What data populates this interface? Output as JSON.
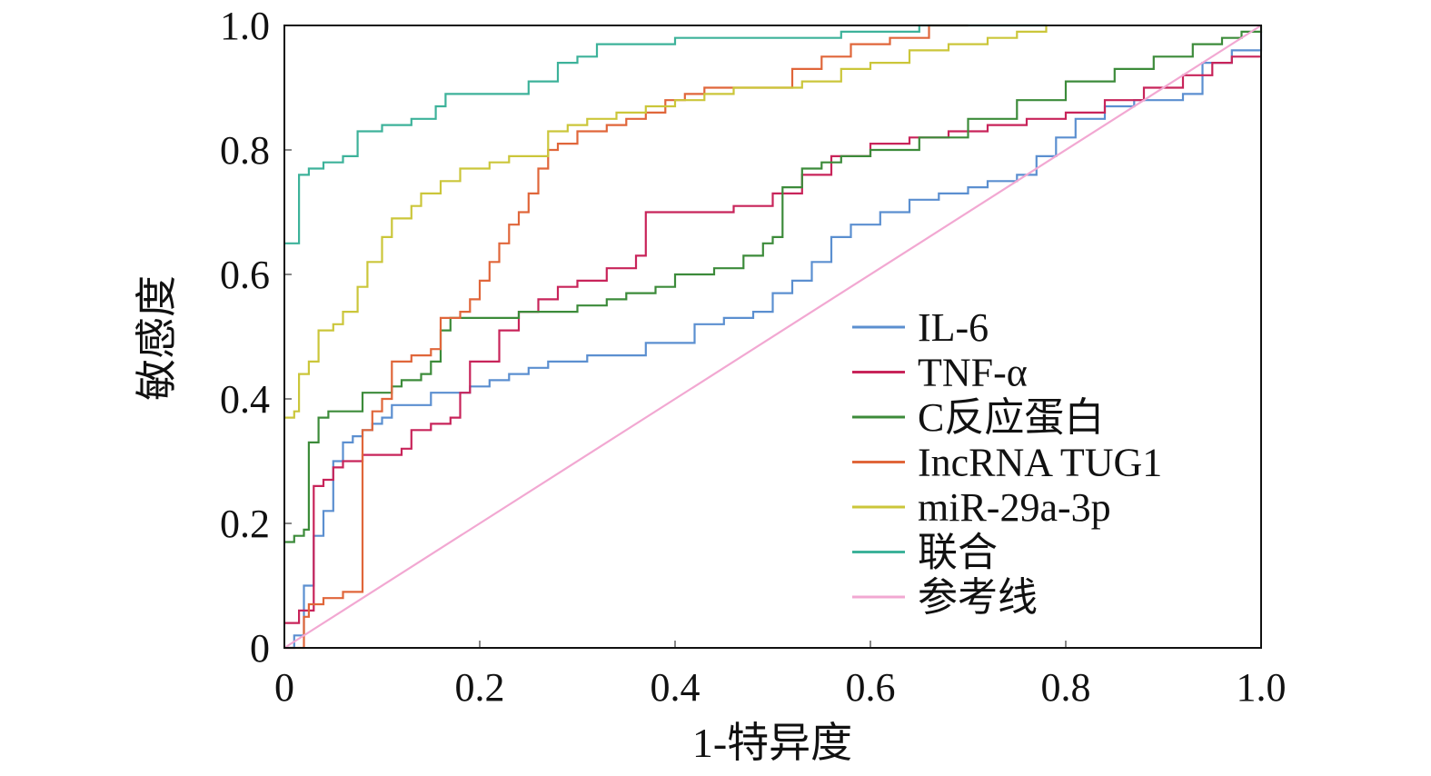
{
  "chart_data": {
    "type": "line",
    "title": "",
    "xlabel": "1-特异度",
    "ylabel": "敏感度",
    "xlim": [
      0,
      1
    ],
    "ylim": [
      0,
      1
    ],
    "xticks": [
      0,
      0.2,
      0.4,
      0.6,
      0.8,
      1.0
    ],
    "xtick_labels": [
      "0",
      "0.2",
      "0.4",
      "0.6",
      "0.8",
      "1.0"
    ],
    "yticks": [
      0,
      0.2,
      0.4,
      0.6,
      0.8,
      1.0
    ],
    "ytick_labels": [
      "0",
      "0.2",
      "0.4",
      "0.6",
      "0.8",
      "1.0"
    ],
    "legend_position": "bottom-right",
    "series": [
      {
        "name": "IL-6",
        "color": "#5B8FD0",
        "points": [
          [
            0,
            0
          ],
          [
            0.01,
            0.02
          ],
          [
            0.02,
            0.1
          ],
          [
            0.03,
            0.18
          ],
          [
            0.04,
            0.22
          ],
          [
            0.05,
            0.3
          ],
          [
            0.06,
            0.33
          ],
          [
            0.07,
            0.34
          ],
          [
            0.08,
            0.35
          ],
          [
            0.09,
            0.36
          ],
          [
            0.1,
            0.37
          ],
          [
            0.11,
            0.39
          ],
          [
            0.13,
            0.39
          ],
          [
            0.15,
            0.41
          ],
          [
            0.17,
            0.41
          ],
          [
            0.19,
            0.42
          ],
          [
            0.21,
            0.43
          ],
          [
            0.23,
            0.44
          ],
          [
            0.25,
            0.45
          ],
          [
            0.27,
            0.46
          ],
          [
            0.29,
            0.46
          ],
          [
            0.31,
            0.47
          ],
          [
            0.35,
            0.47
          ],
          [
            0.37,
            0.49
          ],
          [
            0.41,
            0.49
          ],
          [
            0.42,
            0.52
          ],
          [
            0.45,
            0.53
          ],
          [
            0.48,
            0.54
          ],
          [
            0.5,
            0.57
          ],
          [
            0.52,
            0.59
          ],
          [
            0.54,
            0.62
          ],
          [
            0.56,
            0.66
          ],
          [
            0.58,
            0.68
          ],
          [
            0.61,
            0.7
          ],
          [
            0.64,
            0.72
          ],
          [
            0.67,
            0.73
          ],
          [
            0.7,
            0.74
          ],
          [
            0.72,
            0.75
          ],
          [
            0.75,
            0.76
          ],
          [
            0.77,
            0.79
          ],
          [
            0.79,
            0.82
          ],
          [
            0.81,
            0.85
          ],
          [
            0.84,
            0.87
          ],
          [
            0.87,
            0.88
          ],
          [
            0.9,
            0.88
          ],
          [
            0.92,
            0.89
          ],
          [
            0.94,
            0.94
          ],
          [
            0.97,
            0.96
          ],
          [
            1.0,
            0.99
          ]
        ]
      },
      {
        "name": "TNF-α",
        "color": "#C8245A",
        "points": [
          [
            0,
            0.04
          ],
          [
            0.01,
            0.04
          ],
          [
            0.015,
            0.06
          ],
          [
            0.025,
            0.06
          ],
          [
            0.03,
            0.26
          ],
          [
            0.04,
            0.27
          ],
          [
            0.05,
            0.29
          ],
          [
            0.06,
            0.3
          ],
          [
            0.07,
            0.3
          ],
          [
            0.08,
            0.31
          ],
          [
            0.1,
            0.31
          ],
          [
            0.12,
            0.32
          ],
          [
            0.13,
            0.35
          ],
          [
            0.15,
            0.36
          ],
          [
            0.17,
            0.37
          ],
          [
            0.18,
            0.41
          ],
          [
            0.19,
            0.46
          ],
          [
            0.21,
            0.46
          ],
          [
            0.22,
            0.51
          ],
          [
            0.24,
            0.54
          ],
          [
            0.26,
            0.56
          ],
          [
            0.28,
            0.58
          ],
          [
            0.3,
            0.59
          ],
          [
            0.33,
            0.61
          ],
          [
            0.36,
            0.63
          ],
          [
            0.37,
            0.7
          ],
          [
            0.42,
            0.7
          ],
          [
            0.46,
            0.71
          ],
          [
            0.5,
            0.73
          ],
          [
            0.53,
            0.76
          ],
          [
            0.56,
            0.79
          ],
          [
            0.6,
            0.81
          ],
          [
            0.64,
            0.82
          ],
          [
            0.68,
            0.83
          ],
          [
            0.72,
            0.84
          ],
          [
            0.76,
            0.85
          ],
          [
            0.8,
            0.86
          ],
          [
            0.84,
            0.88
          ],
          [
            0.88,
            0.9
          ],
          [
            0.92,
            0.92
          ],
          [
            0.95,
            0.94
          ],
          [
            0.97,
            0.95
          ],
          [
            1.0,
            0.95
          ]
        ]
      },
      {
        "name": "C反应蛋白",
        "color": "#3C8B3A",
        "points": [
          [
            0,
            0.17
          ],
          [
            0.01,
            0.18
          ],
          [
            0.02,
            0.19
          ],
          [
            0.025,
            0.33
          ],
          [
            0.035,
            0.37
          ],
          [
            0.045,
            0.38
          ],
          [
            0.055,
            0.38
          ],
          [
            0.075,
            0.38
          ],
          [
            0.08,
            0.41
          ],
          [
            0.11,
            0.42
          ],
          [
            0.12,
            0.43
          ],
          [
            0.14,
            0.44
          ],
          [
            0.15,
            0.46
          ],
          [
            0.16,
            0.51
          ],
          [
            0.17,
            0.53
          ],
          [
            0.22,
            0.53
          ],
          [
            0.24,
            0.54
          ],
          [
            0.28,
            0.54
          ],
          [
            0.3,
            0.55
          ],
          [
            0.33,
            0.56
          ],
          [
            0.35,
            0.57
          ],
          [
            0.38,
            0.58
          ],
          [
            0.4,
            0.6
          ],
          [
            0.44,
            0.61
          ],
          [
            0.47,
            0.63
          ],
          [
            0.49,
            0.65
          ],
          [
            0.5,
            0.66
          ],
          [
            0.51,
            0.74
          ],
          [
            0.53,
            0.77
          ],
          [
            0.55,
            0.78
          ],
          [
            0.57,
            0.79
          ],
          [
            0.6,
            0.8
          ],
          [
            0.65,
            0.82
          ],
          [
            0.7,
            0.85
          ],
          [
            0.75,
            0.88
          ],
          [
            0.8,
            0.91
          ],
          [
            0.85,
            0.93
          ],
          [
            0.89,
            0.95
          ],
          [
            0.93,
            0.97
          ],
          [
            0.96,
            0.98
          ],
          [
            0.98,
            0.99
          ],
          [
            1.0,
            1.0
          ]
        ]
      },
      {
        "name": "IncRNA TUG1",
        "color": "#E0663A",
        "points": [
          [
            0,
            0
          ],
          [
            0.015,
            0
          ],
          [
            0.02,
            0.05
          ],
          [
            0.025,
            0.07
          ],
          [
            0.04,
            0.08
          ],
          [
            0.06,
            0.09
          ],
          [
            0.075,
            0.09
          ],
          [
            0.08,
            0.35
          ],
          [
            0.09,
            0.38
          ],
          [
            0.1,
            0.4
          ],
          [
            0.11,
            0.46
          ],
          [
            0.13,
            0.47
          ],
          [
            0.15,
            0.48
          ],
          [
            0.16,
            0.53
          ],
          [
            0.18,
            0.54
          ],
          [
            0.19,
            0.56
          ],
          [
            0.2,
            0.59
          ],
          [
            0.21,
            0.62
          ],
          [
            0.22,
            0.65
          ],
          [
            0.23,
            0.68
          ],
          [
            0.24,
            0.7
          ],
          [
            0.25,
            0.73
          ],
          [
            0.26,
            0.77
          ],
          [
            0.27,
            0.8
          ],
          [
            0.28,
            0.81
          ],
          [
            0.3,
            0.83
          ],
          [
            0.33,
            0.84
          ],
          [
            0.35,
            0.85
          ],
          [
            0.37,
            0.86
          ],
          [
            0.39,
            0.88
          ],
          [
            0.41,
            0.89
          ],
          [
            0.43,
            0.9
          ],
          [
            0.46,
            0.9
          ],
          [
            0.5,
            0.9
          ],
          [
            0.52,
            0.93
          ],
          [
            0.55,
            0.95
          ],
          [
            0.58,
            0.97
          ],
          [
            0.62,
            0.98
          ],
          [
            0.66,
            1.0
          ],
          [
            0.7,
            1.0
          ]
        ]
      },
      {
        "name": "miR-29a-3p",
        "color": "#CBC63A",
        "points": [
          [
            0,
            0.37
          ],
          [
            0.01,
            0.38
          ],
          [
            0.015,
            0.44
          ],
          [
            0.025,
            0.46
          ],
          [
            0.035,
            0.51
          ],
          [
            0.05,
            0.52
          ],
          [
            0.06,
            0.54
          ],
          [
            0.075,
            0.58
          ],
          [
            0.085,
            0.62
          ],
          [
            0.1,
            0.66
          ],
          [
            0.11,
            0.69
          ],
          [
            0.13,
            0.71
          ],
          [
            0.14,
            0.73
          ],
          [
            0.16,
            0.75
          ],
          [
            0.18,
            0.77
          ],
          [
            0.21,
            0.78
          ],
          [
            0.23,
            0.79
          ],
          [
            0.25,
            0.79
          ],
          [
            0.27,
            0.83
          ],
          [
            0.29,
            0.84
          ],
          [
            0.31,
            0.85
          ],
          [
            0.34,
            0.86
          ],
          [
            0.37,
            0.87
          ],
          [
            0.4,
            0.88
          ],
          [
            0.43,
            0.89
          ],
          [
            0.46,
            0.9
          ],
          [
            0.5,
            0.9
          ],
          [
            0.53,
            0.91
          ],
          [
            0.57,
            0.93
          ],
          [
            0.6,
            0.94
          ],
          [
            0.64,
            0.96
          ],
          [
            0.68,
            0.97
          ],
          [
            0.72,
            0.98
          ],
          [
            0.75,
            0.99
          ],
          [
            0.78,
            1.0
          ]
        ]
      },
      {
        "name": "联合",
        "color": "#3DB29A",
        "points": [
          [
            0,
            0.65
          ],
          [
            0.01,
            0.65
          ],
          [
            0.015,
            0.76
          ],
          [
            0.025,
            0.77
          ],
          [
            0.04,
            0.78
          ],
          [
            0.06,
            0.79
          ],
          [
            0.075,
            0.83
          ],
          [
            0.1,
            0.84
          ],
          [
            0.13,
            0.85
          ],
          [
            0.155,
            0.87
          ],
          [
            0.165,
            0.89
          ],
          [
            0.2,
            0.89
          ],
          [
            0.25,
            0.91
          ],
          [
            0.28,
            0.94
          ],
          [
            0.3,
            0.95
          ],
          [
            0.32,
            0.97
          ],
          [
            0.36,
            0.97
          ],
          [
            0.4,
            0.98
          ],
          [
            0.5,
            0.98
          ],
          [
            0.57,
            0.99
          ],
          [
            0.65,
            1.0
          ],
          [
            0.78,
            1.0
          ]
        ]
      },
      {
        "name": "参考线",
        "color": "#F2A8D2",
        "points": [
          [
            0,
            0
          ],
          [
            1,
            1
          ]
        ]
      }
    ]
  }
}
